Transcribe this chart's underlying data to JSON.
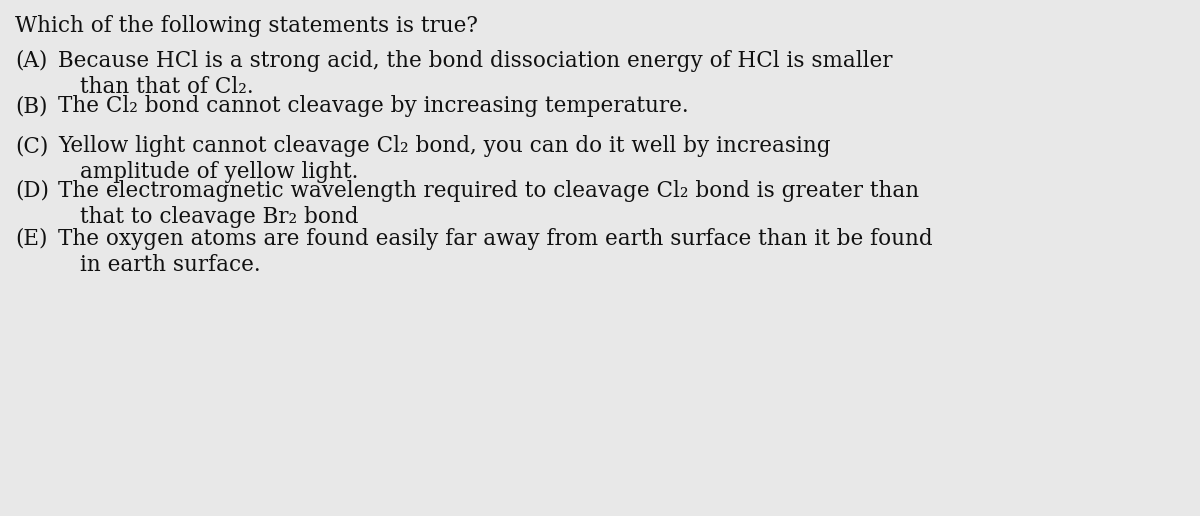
{
  "bg_color": "#e8e8e8",
  "text_color": "#111111",
  "title": "Which of the following statements is true?",
  "options": [
    {
      "label": "(A)",
      "line1": "Because HCl is a strong acid, the bond dissociation energy of HCl is smaller",
      "line2": "than that of Cl₂."
    },
    {
      "label": "(B)",
      "line1": "The Cl₂ bond cannot cleavage by increasing temperature.",
      "line2": null
    },
    {
      "label": "(C)",
      "line1": "Yellow light cannot cleavage Cl₂ bond, you can do it well by increasing",
      "line2": "amplitude of yellow light."
    },
    {
      "label": "(D)",
      "line1": "The electromagnetic wavelength required to cleavage Cl₂ bond is greater than",
      "line2": "that to cleavage Br₂ bond"
    },
    {
      "label": "(E)",
      "line1": "The oxygen atoms are found easily far away from earth surface than it be found",
      "line2": "in earth surface."
    }
  ],
  "font_size": 15.5,
  "figsize": [
    12.0,
    5.16
  ],
  "dpi": 100
}
